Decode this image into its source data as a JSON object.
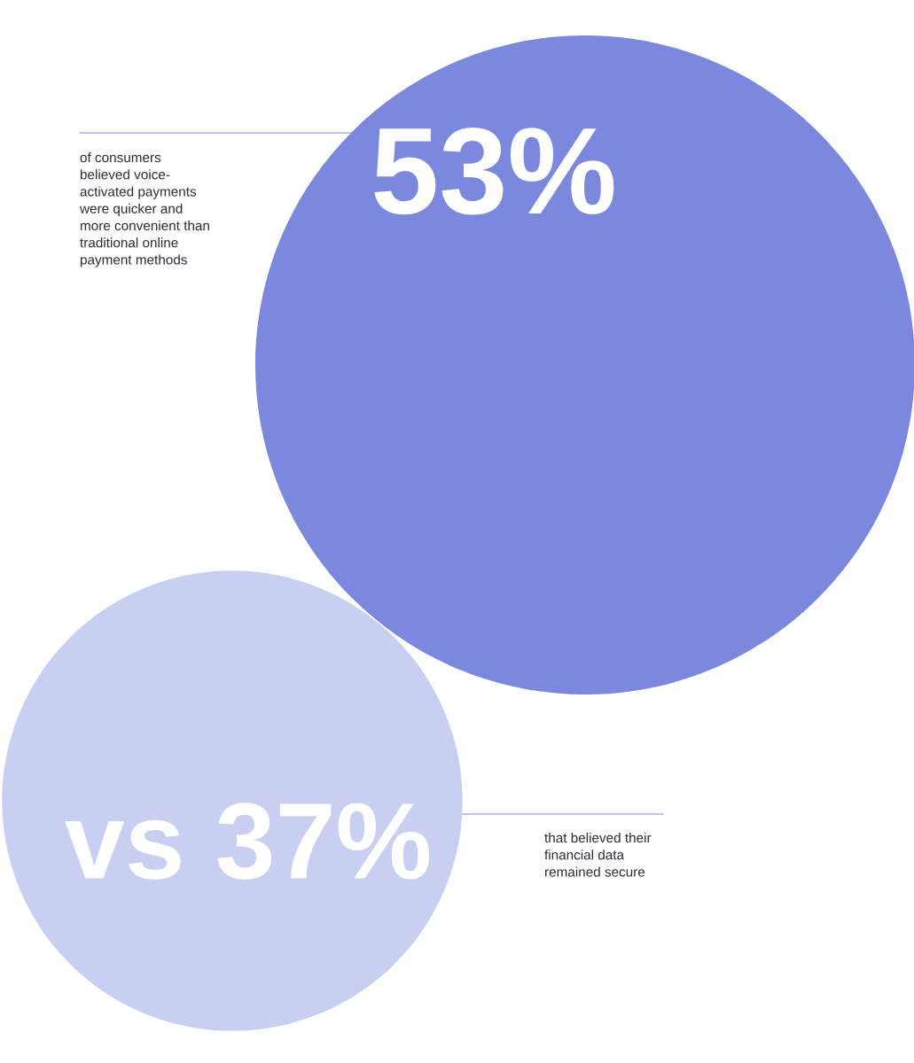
{
  "chart_data": {
    "type": "other",
    "categories": [
      "of consumers\nbelieved voice-\nactivated payments\nwere quicker and\nmore convenient than\ntraditional online\npayment methods",
      "that believed their\nfinancial data\nremained secure"
    ],
    "values": [
      53,
      37
    ],
    "value_labels": [
      "53%",
      "vs 37%"
    ],
    "colors": [
      "#7b88de",
      "#c9cff0"
    ]
  }
}
